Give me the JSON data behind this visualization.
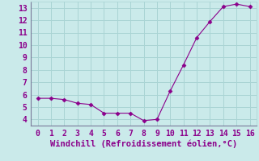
{
  "x": [
    0,
    1,
    2,
    3,
    4,
    5,
    6,
    7,
    8,
    9,
    10,
    11,
    12,
    13,
    14,
    15,
    16
  ],
  "y": [
    5.7,
    5.7,
    5.6,
    5.3,
    5.2,
    4.5,
    4.5,
    4.5,
    3.9,
    4.0,
    6.3,
    8.4,
    10.6,
    11.9,
    13.1,
    13.3,
    13.1
  ],
  "line_color": "#8B008B",
  "marker": "D",
  "marker_size": 2.5,
  "bg_color": "#caeaea",
  "grid_color": "#aad4d4",
  "xlabel": "Windchill (Refroidissement éolien,°C)",
  "xlim": [
    -0.5,
    16.5
  ],
  "ylim": [
    3.5,
    13.5
  ],
  "xticks": [
    0,
    1,
    2,
    3,
    4,
    5,
    6,
    7,
    8,
    9,
    10,
    11,
    12,
    13,
    14,
    15,
    16
  ],
  "yticks": [
    4,
    5,
    6,
    7,
    8,
    9,
    10,
    11,
    12,
    13
  ],
  "tick_color": "#8B008B",
  "label_color": "#8B008B",
  "font_family": "monospace",
  "tick_fontsize": 7,
  "xlabel_fontsize": 7.5
}
